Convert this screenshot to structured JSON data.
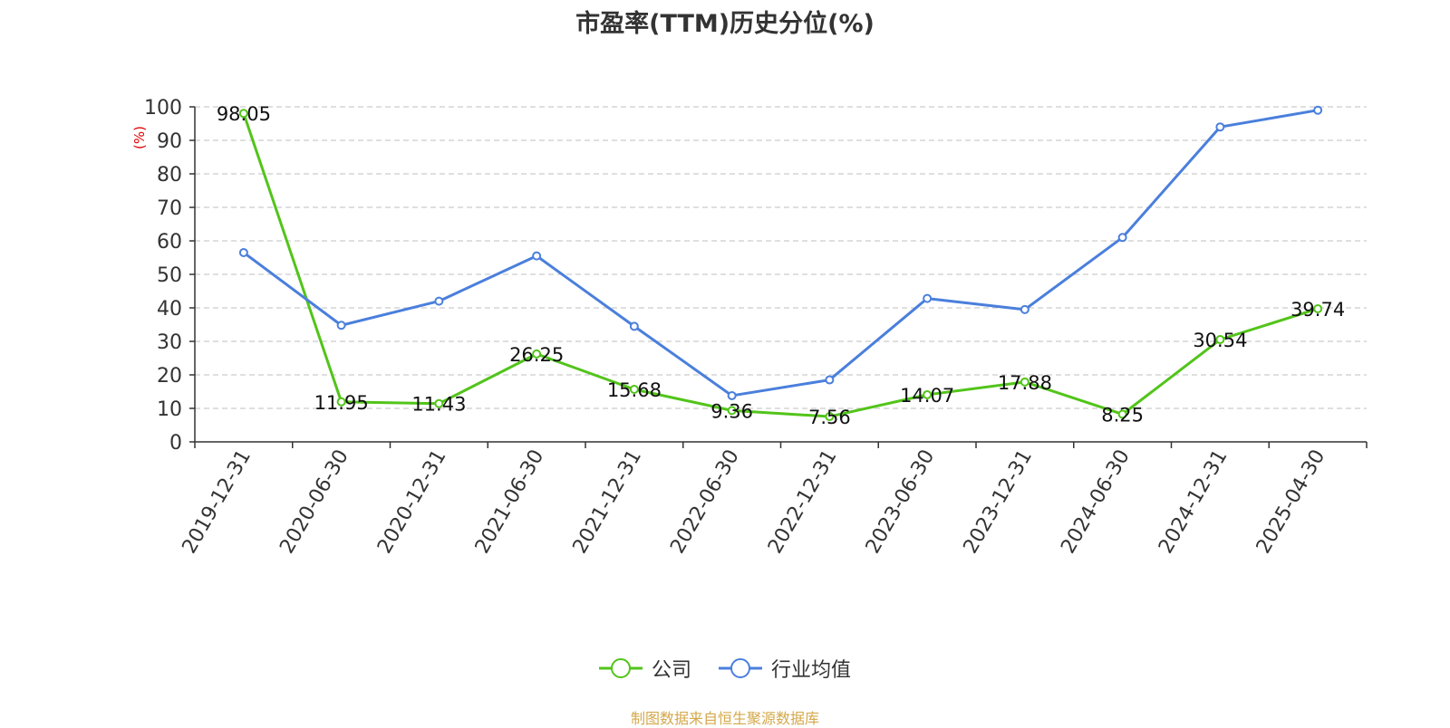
{
  "chart_data": {
    "type": "line",
    "title": "市盈率(TTM)历史分位(%)",
    "ylabel": "(%)",
    "xlabel": "",
    "ylim": [
      0,
      100
    ],
    "yticks": [
      0,
      10,
      20,
      30,
      40,
      50,
      60,
      70,
      80,
      90,
      100
    ],
    "grid": true,
    "legend_position": "bottom",
    "categories": [
      "2019-12-31",
      "2020-06-30",
      "2020-12-31",
      "2021-06-30",
      "2021-12-31",
      "2022-06-30",
      "2022-12-31",
      "2023-06-30",
      "2023-12-31",
      "2024-06-30",
      "2024-12-31",
      "2025-04-30"
    ],
    "series": [
      {
        "name": "公司",
        "color": "#52c41a",
        "show_labels": true,
        "values": [
          98.05,
          11.95,
          11.43,
          26.25,
          15.68,
          9.36,
          7.56,
          14.07,
          17.88,
          8.25,
          30.54,
          39.74
        ]
      },
      {
        "name": "行业均值",
        "color": "#4a7fdc",
        "show_labels": false,
        "values": [
          56.5,
          34.8,
          42.0,
          55.5,
          34.5,
          13.8,
          18.5,
          42.8,
          39.5,
          61.0,
          94.0,
          99.0
        ]
      }
    ]
  },
  "footer": {
    "source": "制图数据来自恒生聚源数据库"
  }
}
